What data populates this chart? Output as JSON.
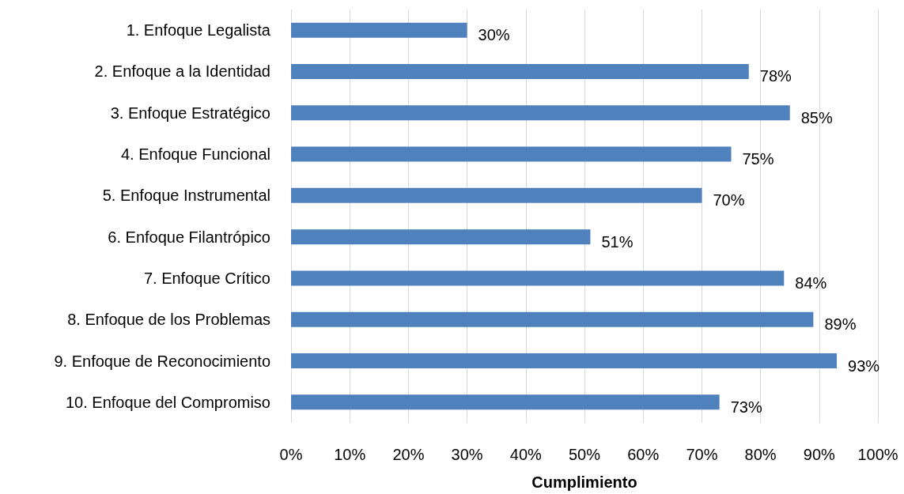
{
  "chart_data": {
    "type": "bar",
    "orientation": "horizontal",
    "xlabel": "Cumplimiento",
    "categories": [
      "1. Enfoque Legalista",
      "2. Enfoque a la Identidad",
      "3. Enfoque Estratégico",
      "4. Enfoque Funcional",
      "5. Enfoque Instrumental",
      "6. Enfoque Filantrópico",
      "7. Enfoque Crítico",
      "8. Enfoque de los Problemas",
      "9. Enfoque de Reconocimiento",
      "10. Enfoque del Compromiso"
    ],
    "values": [
      30,
      78,
      85,
      75,
      70,
      51,
      84,
      89,
      93,
      73
    ],
    "value_labels": [
      "30%",
      "78%",
      "85%",
      "75%",
      "70%",
      "51%",
      "84%",
      "89%",
      "93%",
      "73%"
    ],
    "color": "#4f81bd",
    "xlim": [
      0,
      100
    ],
    "xticks": [
      {
        "value": 0,
        "label": "0%"
      },
      {
        "value": 10,
        "label": "10%"
      },
      {
        "value": 20,
        "label": "20%"
      },
      {
        "value": 30,
        "label": "30%"
      },
      {
        "value": 40,
        "label": "40%"
      },
      {
        "value": 50,
        "label": "50%"
      },
      {
        "value": 60,
        "label": "60%"
      },
      {
        "value": 70,
        "label": "70%"
      },
      {
        "value": 80,
        "label": "80%"
      },
      {
        "value": 90,
        "label": "90%"
      },
      {
        "value": 100,
        "label": "100%"
      }
    ],
    "grid": "x"
  }
}
